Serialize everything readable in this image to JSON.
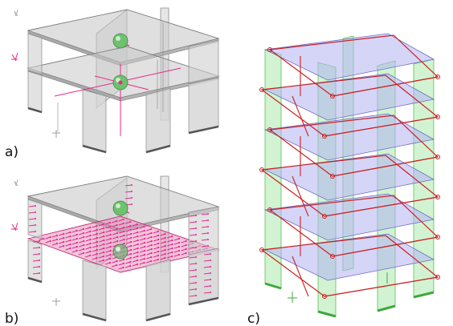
{
  "figure": {
    "panels": [
      {
        "label": "a)"
      },
      {
        "label": "b)"
      },
      {
        "label": "c)"
      }
    ]
  },
  "colors": {
    "slab_gray": "#c4c4c4",
    "wall_gray": "#cfcfcf",
    "edge_gray": "#8a8a8a",
    "load_magenta": "#e8288c",
    "sphere_green": "#6fc06f",
    "wall_green": "#b9ecb9",
    "slab_blue": "#b3b3f2",
    "mode_red": "#cc1f1f"
  }
}
